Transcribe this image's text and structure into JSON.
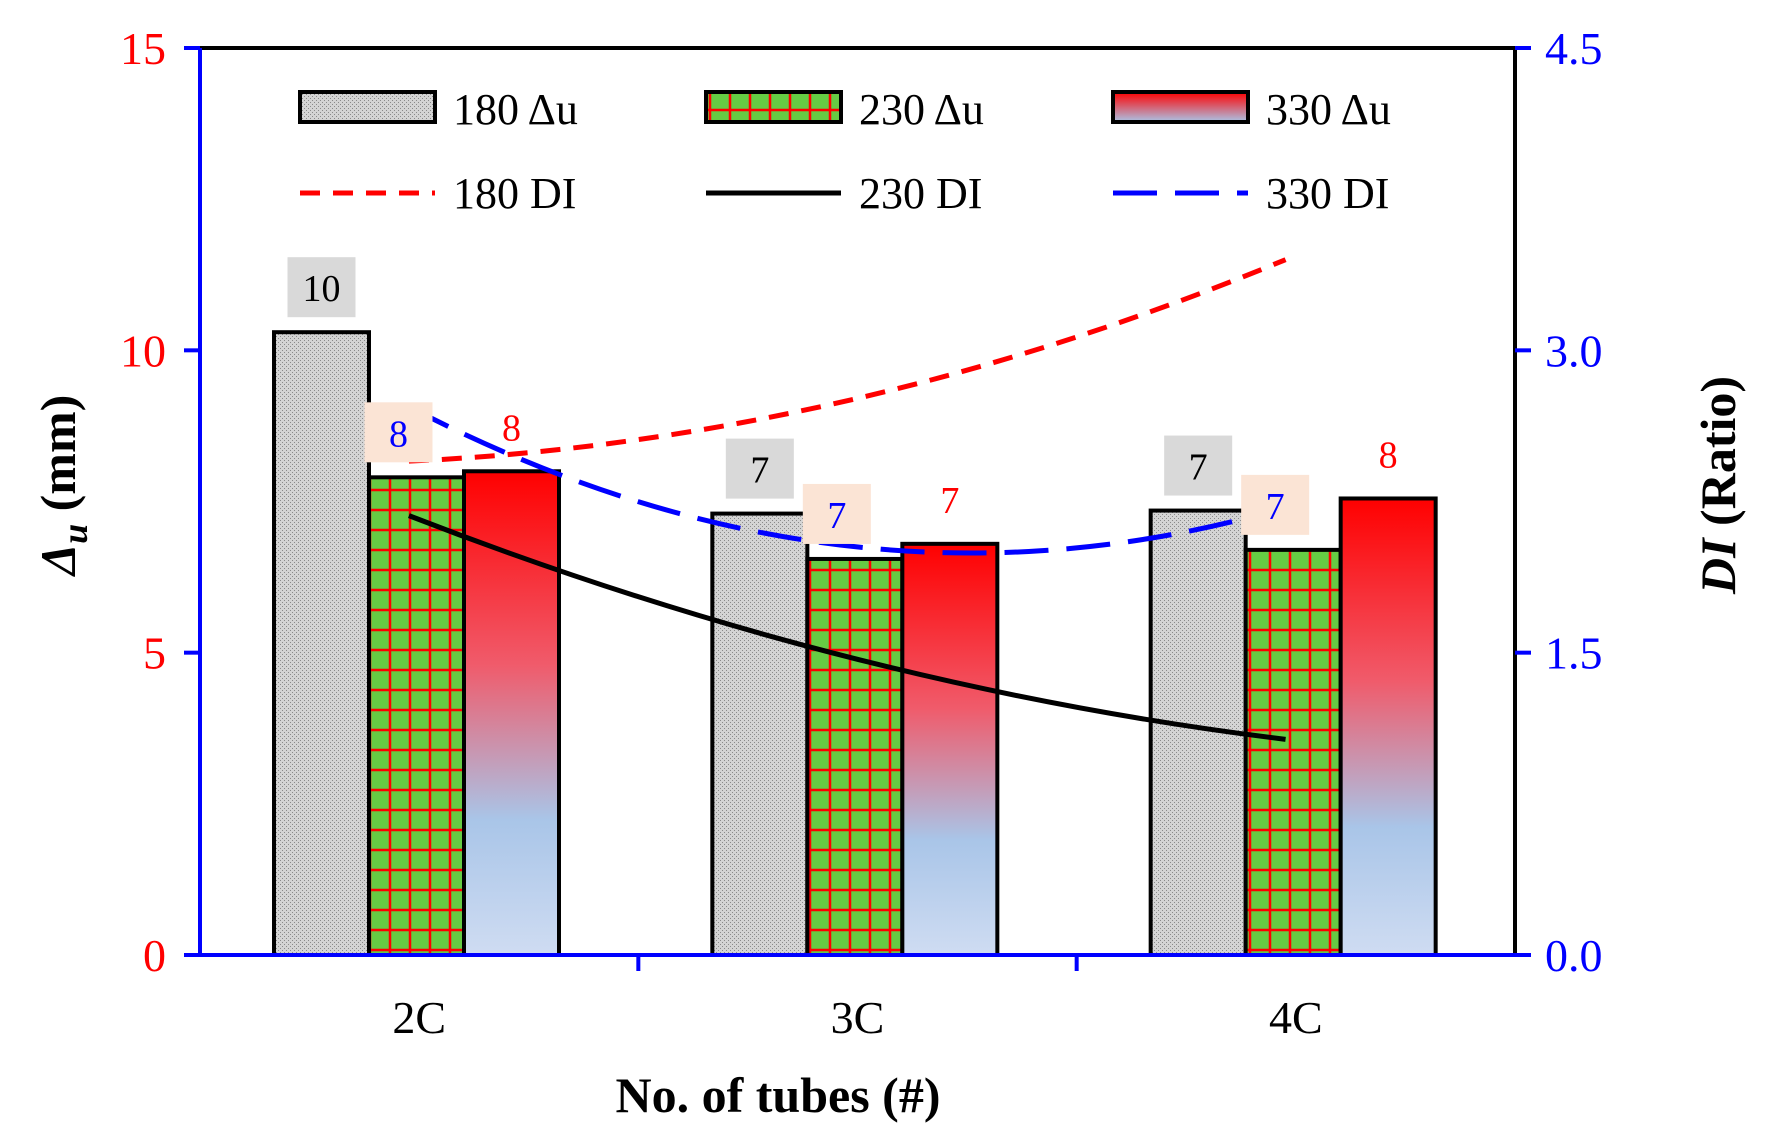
{
  "chart_data": {
    "type": "bar",
    "categories": [
      "2C",
      "3C",
      "4C"
    ],
    "xlabel": "No. of tubes (#)",
    "ylabel_main": "Δ",
    "ylabel_sub": "u",
    "ylabel_unit": " (mm)",
    "y2label_main": "DI",
    "y2label_unit": " (Ratio)",
    "ylim": [
      0,
      15
    ],
    "yticks": [
      "0",
      "5",
      "10",
      "15"
    ],
    "y2lim": [
      0,
      4.5
    ],
    "y2ticks": [
      "0.0",
      "1.5",
      "3.0",
      "4.5"
    ],
    "bar_series": [
      {
        "name": "180 Δu",
        "values": [
          10.3,
          7.3,
          7.35
        ],
        "labels": [
          "10",
          "7",
          "7"
        ]
      },
      {
        "name": "230 Δu",
        "values": [
          7.9,
          6.55,
          6.7
        ],
        "labels": [
          "8",
          "7",
          "7"
        ]
      },
      {
        "name": "330 Δu",
        "values": [
          8.0,
          6.8,
          7.55
        ],
        "labels": [
          "8",
          "7",
          "8"
        ]
      }
    ],
    "line_series": [
      {
        "name": "180 DI",
        "values": [
          2.45,
          2.75,
          3.45
        ],
        "style": "short-dash",
        "color": "#ff0000"
      },
      {
        "name": "230 DI",
        "values": [
          2.18,
          1.48,
          1.07
        ],
        "style": "solid",
        "color": "#000000"
      },
      {
        "name": "330 DI",
        "values": [
          2.72,
          2.03,
          2.22
        ],
        "style": "long-dash",
        "color": "#0000ff"
      }
    ],
    "legend_position": "top",
    "colors": {
      "left_axis_ticks": "#ff0000",
      "right_axis": "#0000ff",
      "bar_180": "#c8c8c8",
      "bar_230": "#66cc44",
      "bar_230_grid": "#ff0000",
      "bar_330_top": "#ff0000",
      "bar_330_bottom": "#a9c5e8",
      "label_box_180": "#d9d9d9",
      "label_box_230": "#fbe4d5"
    }
  }
}
